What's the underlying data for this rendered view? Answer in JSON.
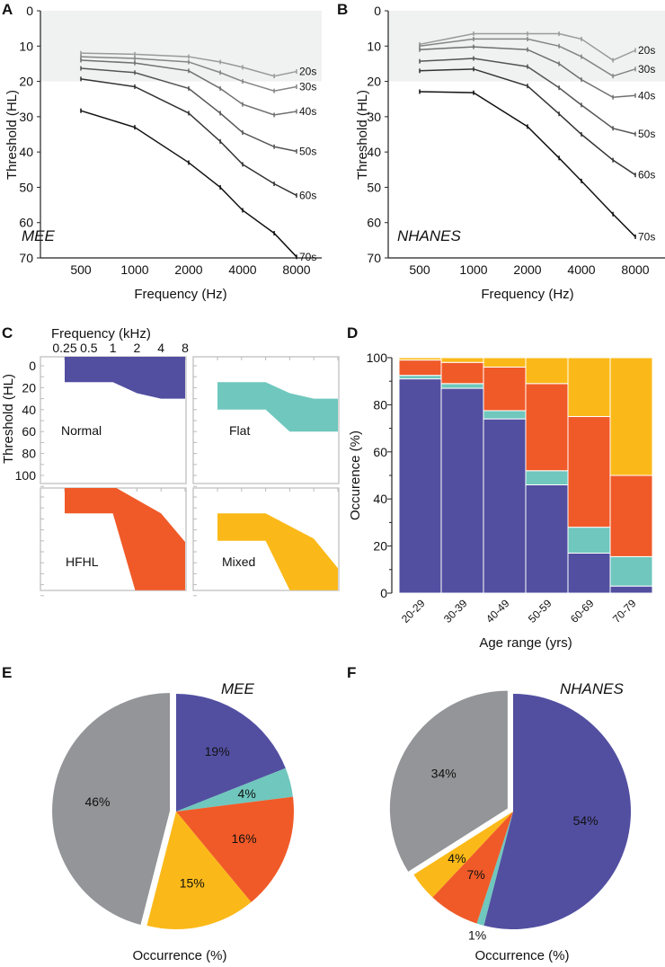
{
  "colors": {
    "normal": "#524fa1",
    "flat": "#6fc7bd",
    "hfhl": "#f05a28",
    "mixed": "#fbb919",
    "other": "#939598",
    "normal_band": "#f0f1f1"
  },
  "chart_data": [
    {
      "panel": "A",
      "type": "line",
      "annotation": "MEE",
      "xlabel": "Frequency (Hz)",
      "ylabel": "Threshold (HL)",
      "x_scale": "log",
      "y_inverted": true,
      "ylim": [
        0,
        70
      ],
      "normal_range": [
        0,
        20
      ],
      "x_ticks": [
        500,
        1000,
        2000,
        4000,
        8000
      ],
      "y_ticks": [
        0,
        10,
        20,
        30,
        40,
        50,
        60,
        70
      ],
      "x": [
        500,
        1000,
        2000,
        3000,
        4000,
        6000,
        8000
      ],
      "series": [
        {
          "name": "20s",
          "color": "#9a9a9a",
          "values": [
            12,
            12.3,
            13,
            14.5,
            16,
            18.5,
            17.2
          ]
        },
        {
          "name": "30s",
          "color": "#858585",
          "values": [
            13,
            13.5,
            14.5,
            17.5,
            20,
            22.7,
            21.5
          ]
        },
        {
          "name": "40s",
          "color": "#707070",
          "values": [
            14,
            14.8,
            17,
            22,
            26.5,
            29.5,
            28.5
          ]
        },
        {
          "name": "50s",
          "color": "#555555",
          "values": [
            16.3,
            17.5,
            22,
            29,
            34.5,
            38.5,
            39.8
          ]
        },
        {
          "name": "60s",
          "color": "#333333",
          "values": [
            19.3,
            21.5,
            29,
            37,
            43.5,
            49,
            52.3
          ]
        },
        {
          "name": "70s",
          "color": "#111111",
          "values": [
            28.3,
            33,
            43,
            50,
            56.5,
            63,
            69.7
          ]
        }
      ]
    },
    {
      "panel": "B",
      "type": "line",
      "annotation": "NHANES",
      "xlabel": "Frequency (Hz)",
      "ylabel": "Threshold (HL)",
      "x_scale": "log",
      "y_inverted": true,
      "ylim": [
        0,
        70
      ],
      "normal_range": [
        0,
        20
      ],
      "x_ticks": [
        500,
        1000,
        2000,
        4000,
        8000
      ],
      "y_ticks": [
        0,
        10,
        20,
        30,
        40,
        50,
        60,
        70
      ],
      "x": [
        500,
        1000,
        2000,
        3000,
        4000,
        6000,
        8000
      ],
      "series": [
        {
          "name": "20s",
          "color": "#9a9a9a",
          "values": [
            9.5,
            6.5,
            6.5,
            6.5,
            8,
            14,
            11.2
          ]
        },
        {
          "name": "30s",
          "color": "#858585",
          "values": [
            10,
            8,
            8,
            10,
            13,
            18.5,
            16.5
          ]
        },
        {
          "name": "40s",
          "color": "#707070",
          "values": [
            11,
            10.2,
            11,
            15,
            19.5,
            24.5,
            24
          ]
        },
        {
          "name": "50s",
          "color": "#555555",
          "values": [
            14.3,
            13.5,
            15.8,
            21.8,
            26.7,
            33.3,
            34.9
          ]
        },
        {
          "name": "60s",
          "color": "#333333",
          "values": [
            17,
            16.5,
            21.3,
            29.2,
            35,
            42.3,
            46.5
          ]
        },
        {
          "name": "70s",
          "color": "#111111",
          "values": [
            22.9,
            23.2,
            32.8,
            41.7,
            48.2,
            57.6,
            64
          ]
        }
      ]
    },
    {
      "panel": "C",
      "type": "area",
      "xlabel": "Frequency (kHz)",
      "ylabel": "Threshold (HL)",
      "x_ticks": [
        "0.25",
        "0.5",
        "1",
        "2",
        "4",
        "8"
      ],
      "y_ticks": [
        0,
        20,
        40,
        60,
        80,
        100
      ],
      "shapes": [
        {
          "name": "Normal",
          "color_key": "normal",
          "points": [
            [
              0.25,
              -10
            ],
            [
              8,
              -10
            ],
            [
              8,
              30
            ],
            [
              4,
              30
            ],
            [
              2,
              25
            ],
            [
              1,
              15
            ],
            [
              0.25,
              15
            ]
          ]
        },
        {
          "name": "Flat",
          "color_key": "flat",
          "points": [
            [
              0.25,
              15
            ],
            [
              1,
              15
            ],
            [
              2,
              25
            ],
            [
              4,
              30
            ],
            [
              8,
              30
            ],
            [
              8,
              60
            ],
            [
              2,
              60
            ],
            [
              1,
              40
            ],
            [
              0.25,
              40
            ]
          ]
        },
        {
          "name": "HFHL",
          "color_key": "hfhl",
          "points": [
            [
              0.25,
              -10
            ],
            [
              1,
              -10
            ],
            [
              4,
              15
            ],
            [
              8,
              41
            ],
            [
              8,
              85
            ],
            [
              1.9,
              85
            ],
            [
              1,
              15
            ],
            [
              0.25,
              15
            ]
          ]
        },
        {
          "name": "Mixed",
          "color_key": "mixed",
          "points": [
            [
              0.25,
              15
            ],
            [
              1,
              15
            ],
            [
              4,
              38
            ],
            [
              8,
              65
            ],
            [
              8,
              85
            ],
            [
              2,
              85
            ],
            [
              1,
              40
            ],
            [
              0.25,
              40
            ]
          ]
        }
      ]
    },
    {
      "panel": "D",
      "type": "bar",
      "stacked": true,
      "xlabel": "Age range (yrs)",
      "ylabel": "Occurence (%)",
      "ylim": [
        0,
        100
      ],
      "y_ticks": [
        0,
        20,
        40,
        60,
        80,
        100
      ],
      "categories": [
        "20-29",
        "30-39",
        "40-49",
        "50-59",
        "60-69",
        "70-79"
      ],
      "series": [
        {
          "color_key": "normal",
          "values": [
            91,
            87,
            74,
            46,
            17,
            3
          ]
        },
        {
          "color_key": "flat",
          "values": [
            1.5,
            2,
            3.5,
            6,
            11,
            12.5
          ]
        },
        {
          "color_key": "hfhl",
          "values": [
            6.5,
            9,
            18.5,
            37,
            47,
            34.5
          ]
        },
        {
          "color_key": "mixed",
          "values": [
            1,
            2,
            4,
            11,
            25,
            50
          ]
        }
      ]
    },
    {
      "panel": "E",
      "type": "pie",
      "title": "MEE",
      "xlabel": "Occurrence (%)",
      "slices": [
        {
          "color_key": "normal",
          "value": 19,
          "label": "19%"
        },
        {
          "color_key": "flat",
          "value": 4,
          "label": "4%"
        },
        {
          "color_key": "hfhl",
          "value": 16,
          "label": "16%"
        },
        {
          "color_key": "mixed",
          "value": 15,
          "label": "15%"
        },
        {
          "color_key": "other",
          "value": 46,
          "label": "46%",
          "exploded": true
        }
      ]
    },
    {
      "panel": "F",
      "type": "pie",
      "title": "NHANES",
      "xlabel": "Occurrence (%)",
      "slices": [
        {
          "color_key": "normal",
          "value": 54,
          "label": "54%"
        },
        {
          "color_key": "flat",
          "value": 1,
          "label": "1%"
        },
        {
          "color_key": "hfhl",
          "value": 7,
          "label": "7%"
        },
        {
          "color_key": "mixed",
          "value": 4,
          "label": "4%"
        },
        {
          "color_key": "other",
          "value": 34,
          "label": "34%",
          "exploded": true
        }
      ]
    }
  ]
}
